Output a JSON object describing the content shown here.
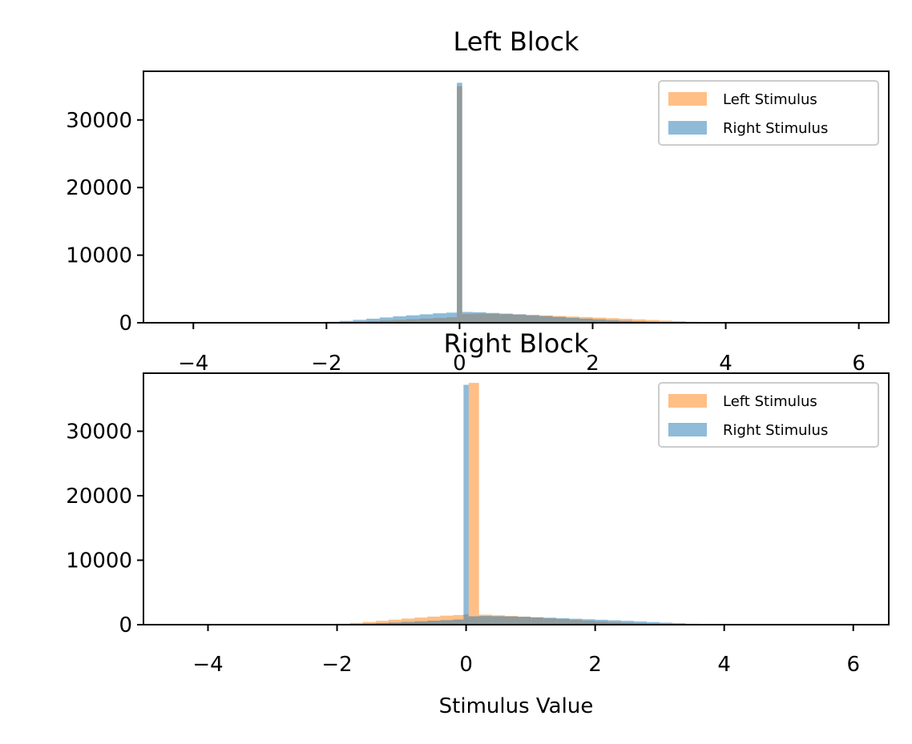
{
  "colors": {
    "left": "#ff7f0e",
    "right": "#1f77b4"
  },
  "chart_data": [
    {
      "type": "histogram",
      "title": "Left Block",
      "xlabel": "",
      "ylabel": "",
      "xlim": [
        -4.75,
        6.45
      ],
      "ylim": [
        0,
        37200
      ],
      "xticks": [
        -4,
        -2,
        0,
        2,
        4,
        6
      ],
      "xtick_labels": [
        "−4",
        "−2",
        "0",
        "2",
        "4",
        "6"
      ],
      "yticks": [
        0,
        10000,
        20000,
        30000
      ],
      "ytick_labels": [
        "0",
        "10000",
        "20000",
        "30000"
      ],
      "legend": "top-right",
      "alpha": 0.5,
      "series": [
        {
          "name": "Left Stimulus",
          "color": "#ff7f0e",
          "bin_edges": [
            -2.0,
            -1.8,
            -1.6,
            -1.4,
            -1.2,
            -1.0,
            -0.8,
            -0.6,
            -0.4,
            -0.2,
            -0.04,
            0.04,
            0.2,
            0.4,
            0.6,
            0.8,
            1.0,
            1.2,
            1.4,
            1.6,
            1.8,
            2.0,
            2.2,
            2.4,
            2.6,
            2.8,
            3.0,
            3.2,
            3.4,
            3.6
          ],
          "counts": [
            80,
            130,
            190,
            260,
            340,
            430,
            520,
            620,
            700,
            800,
            35000,
            1300,
            1350,
            1320,
            1280,
            1220,
            1150,
            1080,
            1000,
            920,
            840,
            760,
            680,
            590,
            500,
            410,
            320,
            230,
            140
          ]
        },
        {
          "name": "Right Stimulus",
          "color": "#1f77b4",
          "bin_edges": [
            -2.0,
            -1.8,
            -1.6,
            -1.4,
            -1.2,
            -1.0,
            -0.8,
            -0.6,
            -0.4,
            -0.2,
            -0.04,
            0.04,
            0.2,
            0.4,
            0.6,
            0.8,
            1.0,
            1.2,
            1.4,
            1.6,
            1.8,
            2.0,
            2.2,
            2.4,
            2.6,
            2.8,
            3.0,
            3.2,
            3.4,
            3.6
          ],
          "counts": [
            150,
            280,
            430,
            600,
            780,
            950,
            1100,
            1250,
            1400,
            1500,
            35500,
            1600,
            1550,
            1450,
            1350,
            1250,
            1120,
            990,
            860,
            730,
            610,
            500,
            400,
            310,
            230,
            170,
            120,
            80,
            40
          ]
        }
      ]
    },
    {
      "type": "histogram",
      "title": "Right Block",
      "xlabel": "Stimulus Value",
      "ylabel": "",
      "xlim": [
        -5.0,
        6.55
      ],
      "ylim": [
        0,
        39000
      ],
      "xticks": [
        -4,
        -2,
        0,
        2,
        4,
        6
      ],
      "xtick_labels": [
        "−4",
        "−2",
        "0",
        "2",
        "4",
        "6"
      ],
      "yticks": [
        0,
        10000,
        20000,
        30000
      ],
      "ytick_labels": [
        "0",
        "10000",
        "20000",
        "30000"
      ],
      "legend": "top-right",
      "alpha": 0.5,
      "series": [
        {
          "name": "Left Stimulus",
          "color": "#ff7f0e",
          "bin_edges": [
            -2.0,
            -1.8,
            -1.6,
            -1.4,
            -1.2,
            -1.0,
            -0.8,
            -0.6,
            -0.4,
            -0.2,
            -0.04,
            0.04,
            0.2,
            0.4,
            0.6,
            0.8,
            1.0,
            1.2,
            1.4,
            1.6,
            1.8,
            2.0,
            2.2,
            2.4,
            2.6,
            2.8,
            3.0,
            3.2,
            3.4,
            3.6
          ],
          "counts": [
            150,
            280,
            430,
            600,
            780,
            950,
            1100,
            1250,
            1400,
            1500,
            1600,
            37500,
            1550,
            1450,
            1350,
            1250,
            1120,
            990,
            860,
            730,
            610,
            500,
            400,
            310,
            230,
            170,
            120,
            80,
            40
          ]
        },
        {
          "name": "Right Stimulus",
          "color": "#1f77b4",
          "bin_edges": [
            -2.0,
            -1.8,
            -1.6,
            -1.4,
            -1.2,
            -1.0,
            -0.8,
            -0.6,
            -0.4,
            -0.2,
            -0.04,
            0.04,
            0.2,
            0.4,
            0.6,
            0.8,
            1.0,
            1.2,
            1.4,
            1.6,
            1.8,
            2.0,
            2.2,
            2.4,
            2.6,
            2.8,
            3.0,
            3.2,
            3.4,
            3.6
          ],
          "counts": [
            80,
            130,
            190,
            260,
            340,
            430,
            520,
            620,
            700,
            800,
            37200,
            1300,
            1350,
            1320,
            1280,
            1220,
            1150,
            1080,
            1000,
            920,
            840,
            760,
            680,
            590,
            500,
            410,
            320,
            230,
            140
          ]
        }
      ]
    }
  ]
}
